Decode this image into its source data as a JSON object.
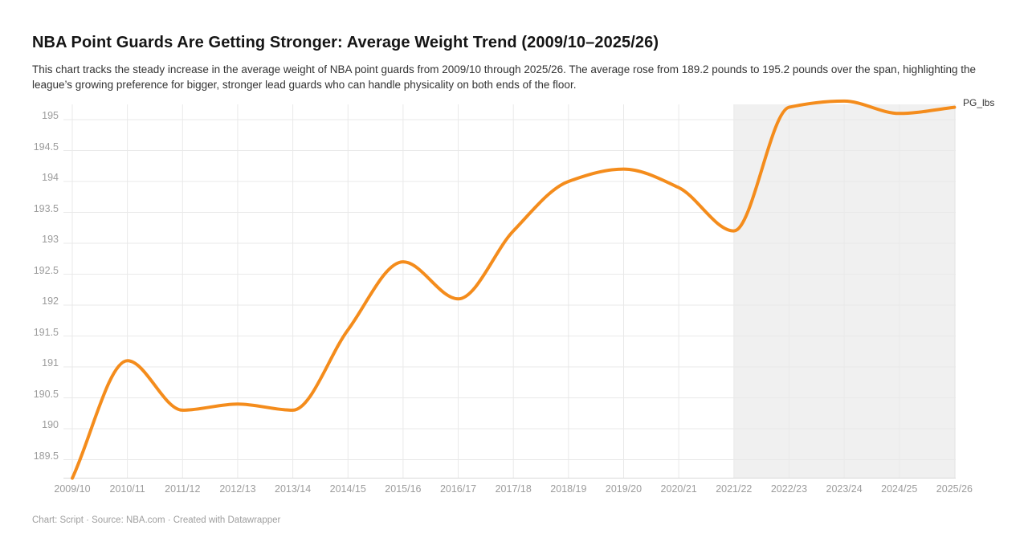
{
  "header": {
    "title": "NBA Point Guards Are Getting Stronger: Average Weight Trend (2009/10–2025/26)",
    "description": "This chart tracks the steady increase in the average weight of NBA point guards from 2009/10 through 2025/26. The average rose from 189.2 pounds to 195.2 pounds over the span, highlighting the league’s growing preference for bigger, stronger lead guards who can handle physicality on both ends of the floor."
  },
  "legend": {
    "series_label": "PG_lbs"
  },
  "footer": {
    "text": "Chart: Script · Source: NBA.com · Created with Datawrapper"
  },
  "colors": {
    "line": "#F48C1C",
    "highlight_region": "#F0F0F0",
    "gridline": "#E9E9E9",
    "axis_baseline": "#D8D8D8",
    "axis_label": "#9C9C9C",
    "title_text": "#151515",
    "description_text": "#333333"
  },
  "chart_data": {
    "type": "line",
    "curve": "monotone",
    "title": "NBA Point Guards Are Getting Stronger: Average Weight Trend (2009/10–2025/26)",
    "xlabel": "",
    "ylabel": "",
    "categories": [
      "2009/10",
      "2010/11",
      "2011/12",
      "2012/13",
      "2013/14",
      "2014/15",
      "2015/16",
      "2016/17",
      "2017/18",
      "2018/19",
      "2019/20",
      "2020/21",
      "2021/22",
      "2022/23",
      "2023/24",
      "2024/25",
      "2025/26"
    ],
    "series": [
      {
        "name": "PG_lbs",
        "values": [
          189.2,
          191.1,
          190.3,
          190.4,
          190.3,
          191.6,
          192.7,
          192.1,
          193.2,
          194,
          194.2,
          193.9,
          193.2,
          195.2,
          195.3,
          195.1,
          195.2
        ]
      }
    ],
    "yticks": [
      195,
      194.5,
      194,
      193.5,
      193,
      192.5,
      192,
      191.5,
      191,
      190.5,
      190,
      189.5
    ],
    "ylim": [
      189.2,
      195.35
    ],
    "grid": true,
    "legend_position": "right-end-of-line",
    "highlight_region": {
      "from_category": "2021/22",
      "to_category": "2025/26"
    }
  }
}
